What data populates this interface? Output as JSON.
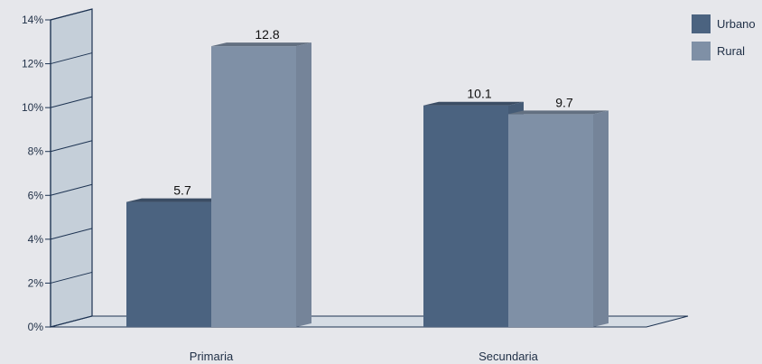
{
  "chart_data": {
    "type": "bar",
    "title": "",
    "xlabel": "",
    "ylabel": "",
    "categories": [
      "Primaria",
      "Secundaria"
    ],
    "series": [
      {
        "name": "Urbano",
        "values": [
          5.7,
          10.1
        ],
        "color": "#4b6380"
      },
      {
        "name": "Rural",
        "values": [
          12.8,
          9.7
        ],
        "color": "#7f90a6"
      }
    ],
    "data_labels": [
      [
        "5.7",
        "12.8"
      ],
      [
        "10.1",
        "9.7"
      ]
    ],
    "ylim": [
      0,
      14
    ],
    "y_ticks": [
      0,
      2,
      4,
      6,
      8,
      10,
      12,
      14
    ],
    "y_tick_labels": [
      "0%",
      "2%",
      "4%",
      "6%",
      "8%",
      "10%",
      "12%",
      "14%"
    ],
    "grid": false,
    "style": "3d",
    "legend_position": "top-right"
  }
}
